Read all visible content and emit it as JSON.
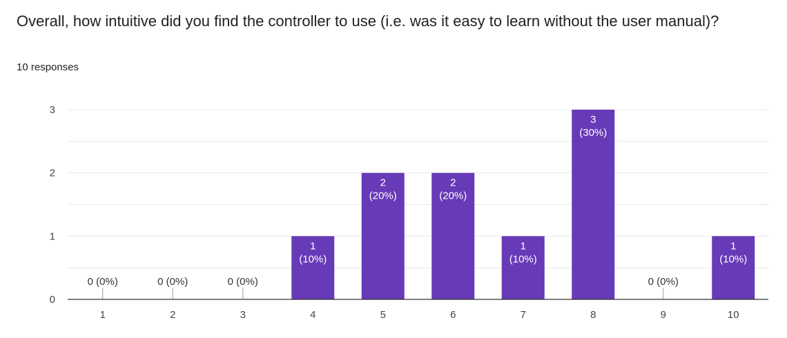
{
  "question": {
    "title": "Overall, how intuitive did you find the controller to use (i.e. was it easy to learn without the user manual)?",
    "responses": "10 responses"
  },
  "colors": {
    "bar": "#673ab7",
    "grid": "#e8e8e8",
    "axis": "#333333"
  },
  "chart_data": {
    "type": "bar",
    "categories": [
      "1",
      "2",
      "3",
      "4",
      "5",
      "6",
      "7",
      "8",
      "9",
      "10"
    ],
    "values": [
      0,
      0,
      0,
      1,
      2,
      2,
      1,
      3,
      0,
      1
    ],
    "data_labels": [
      "0 (0%)",
      "0 (0%)",
      "0 (0%)",
      "1\n(10%)",
      "2\n(20%)",
      "2\n(20%)",
      "1\n(10%)",
      "3\n(30%)",
      "0 (0%)",
      "1\n(10%)"
    ],
    "ylim": [
      0,
      3
    ],
    "yticks": [
      0,
      1,
      2,
      3
    ],
    "grid": true,
    "title": "",
    "xlabel": "",
    "ylabel": ""
  }
}
